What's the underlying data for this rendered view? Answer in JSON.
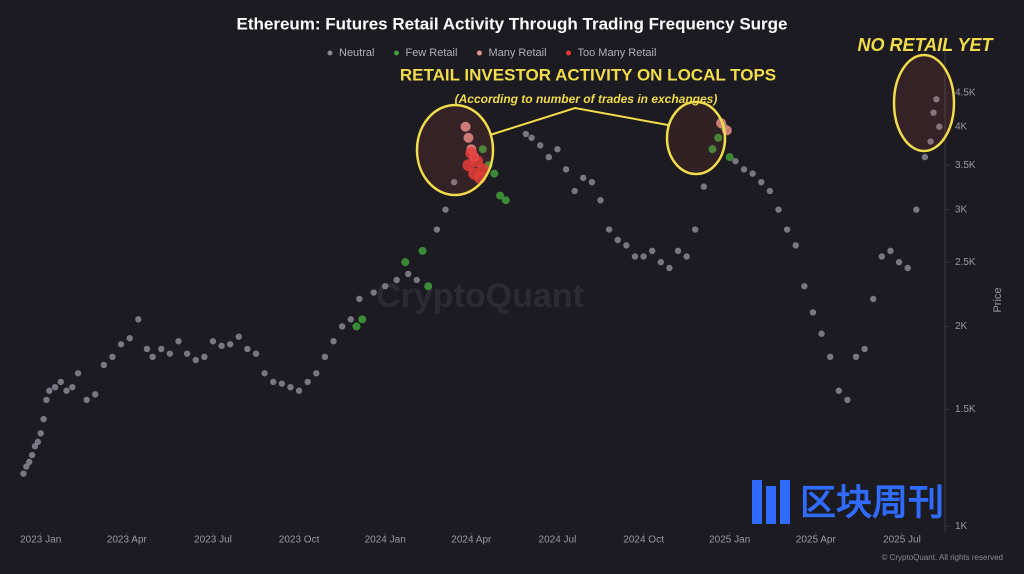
{
  "chart_data": {
    "type": "scatter",
    "title": "Ethereum: Futures Retail Activity Through Trading Frequency Surge",
    "y_label": "Price",
    "log_scale_y": true,
    "grid": false,
    "legend_position": "top",
    "xlim": [
      -1,
      31.5
    ],
    "xticks": [
      {
        "value": 0,
        "label": "2023 Jan"
      },
      {
        "value": 3,
        "label": "2023 Apr"
      },
      {
        "value": 6,
        "label": "2023 Jul"
      },
      {
        "value": 9,
        "label": "2023 Oct"
      },
      {
        "value": 12,
        "label": "2024 Jan"
      },
      {
        "value": 15,
        "label": "2024 Apr"
      },
      {
        "value": 18,
        "label": "2024 Jul"
      },
      {
        "value": 21,
        "label": "2024 Oct"
      },
      {
        "value": 24,
        "label": "2025 Jan"
      },
      {
        "value": 27,
        "label": "2025 Apr"
      },
      {
        "value": 30,
        "label": "2025 Jul"
      }
    ],
    "ylim": [
      980,
      5500
    ],
    "yticks": [
      {
        "value": 1000,
        "label": "1K"
      },
      {
        "value": 1500,
        "label": "1.5K"
      },
      {
        "value": 2000,
        "label": "2K"
      },
      {
        "value": 2500,
        "label": "2.5K"
      },
      {
        "value": 3000,
        "label": "3K"
      },
      {
        "value": 3500,
        "label": "3.5K"
      },
      {
        "value": 4000,
        "label": "4K"
      },
      {
        "value": 4500,
        "label": "4.5K"
      }
    ],
    "series": [
      {
        "name": "Neutral",
        "color": "#8a8794",
        "x": [
          -0.6,
          -0.5,
          -0.4,
          -0.3,
          -0.2,
          -0.1,
          0,
          0.1,
          0.2,
          0.3,
          0.5,
          0.7,
          0.9,
          1.1,
          1.3,
          1.6,
          1.9,
          2.2,
          2.5,
          2.8,
          3.1,
          3.4,
          3.7,
          3.9,
          4.2,
          4.5,
          4.8,
          5.1,
          5.4,
          5.7,
          6,
          6.3,
          6.6,
          6.9,
          7.2,
          7.5,
          7.8,
          8.1,
          8.4,
          8.7,
          9,
          9.3,
          9.6,
          9.9,
          10.2,
          10.5,
          10.8,
          11.1,
          11.6,
          12,
          12.4,
          12.8,
          13.1,
          13.8,
          14.1,
          14.4,
          16.9,
          17.1,
          17.4,
          17.7,
          18,
          18.3,
          18.6,
          18.9,
          19.2,
          19.5,
          19.8,
          20.1,
          20.4,
          20.7,
          21,
          21.3,
          21.6,
          21.9,
          22.2,
          22.5,
          22.8,
          23.1,
          24.2,
          24.5,
          24.8,
          25.1,
          25.4,
          25.7,
          26,
          26.3,
          26.6,
          26.9,
          27.2,
          27.5,
          27.8,
          28.1,
          28.4,
          28.7,
          29,
          29.3,
          29.6,
          29.9,
          30.2,
          30.5,
          30.8,
          31,
          31.1,
          31.2,
          31.3
        ],
        "values": [
          1200,
          1230,
          1250,
          1280,
          1320,
          1340,
          1380,
          1450,
          1550,
          1600,
          1620,
          1650,
          1600,
          1620,
          1700,
          1550,
          1580,
          1750,
          1800,
          1880,
          1920,
          2050,
          1850,
          1800,
          1850,
          1820,
          1900,
          1820,
          1780,
          1800,
          1900,
          1870,
          1880,
          1930,
          1850,
          1820,
          1700,
          1650,
          1640,
          1620,
          1600,
          1650,
          1700,
          1800,
          1900,
          2000,
          2050,
          2200,
          2250,
          2300,
          2350,
          2400,
          2350,
          2800,
          3000,
          3300,
          3900,
          3850,
          3750,
          3600,
          3700,
          3450,
          3200,
          3350,
          3300,
          3100,
          2800,
          2700,
          2650,
          2550,
          2550,
          2600,
          2500,
          2450,
          2600,
          2550,
          2800,
          3250,
          3550,
          3450,
          3400,
          3300,
          3200,
          3000,
          2800,
          2650,
          2300,
          2100,
          1950,
          1800,
          1600,
          1550,
          1800,
          1850,
          2200,
          2550,
          2600,
          2500,
          2450,
          3000,
          3600,
          3800,
          4200,
          4400,
          4000
        ]
      },
      {
        "name": "Few Retail",
        "color": "#3f9e3a",
        "x": [
          11.0,
          11.2,
          12.7,
          13.3,
          13.5,
          15.4,
          15.6,
          15.8,
          16.0,
          16.2,
          23.4,
          23.6,
          23.8,
          24.0
        ],
        "values": [
          2000,
          2050,
          2500,
          2600,
          2300,
          3700,
          3500,
          3400,
          3150,
          3100,
          3700,
          3850,
          4000,
          3600
        ]
      },
      {
        "name": "Many Retail",
        "color": "#e8928c",
        "x": [
          14.8,
          14.9,
          15.0,
          15.1,
          23.7,
          23.9
        ],
        "values": [
          4000,
          3850,
          3700,
          3600,
          4050,
          3950
        ]
      },
      {
        "name": "Too Many Retail",
        "color": "#e53935",
        "x": [
          14.9,
          15.0,
          15.1,
          15.2,
          15.3,
          15.4
        ],
        "values": [
          3500,
          3650,
          3400,
          3550,
          3350,
          3450
        ]
      }
    ],
    "annotations": [
      "RETAIL INVESTOR ACTIVITY ON LOCAL TOPS",
      "(According to number of trades in exchanges)",
      "NO RETAIL YET"
    ],
    "watermark": "CryptoQuant",
    "logo_text": "区块周刊",
    "copyright": "© CryptoQuant. All rights reserved"
  }
}
